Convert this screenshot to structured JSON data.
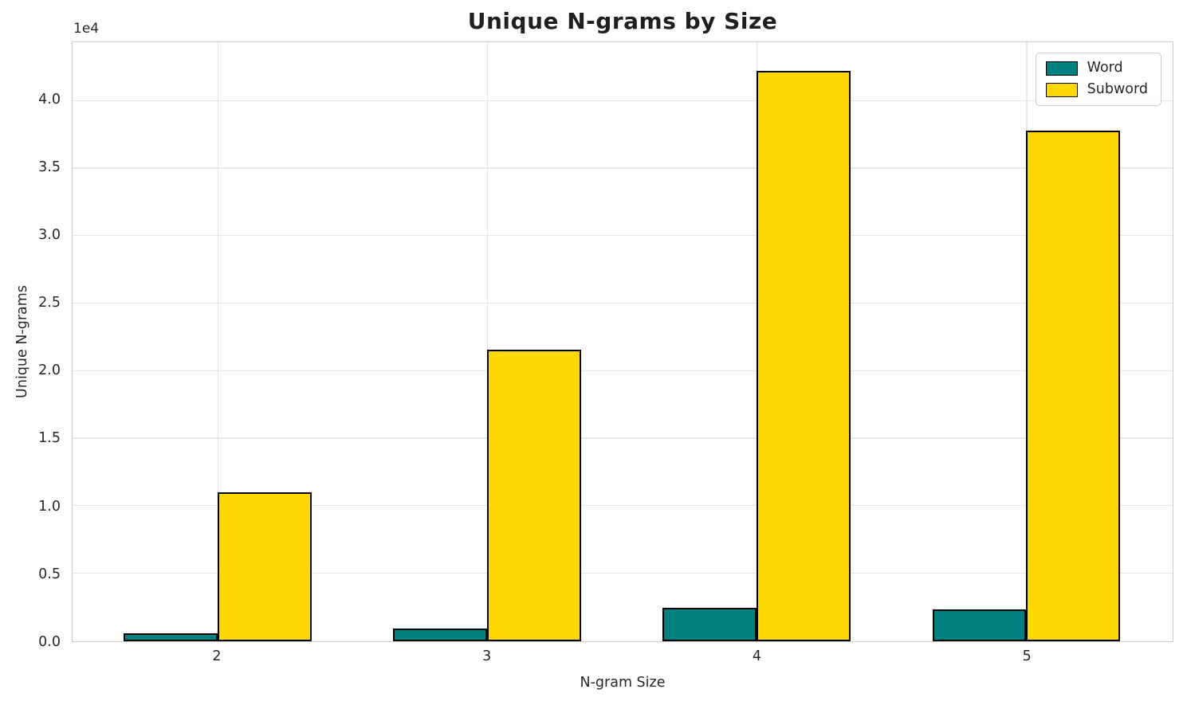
{
  "figure": {
    "title": "Unique N-grams by Size",
    "offset_text": "1e4"
  },
  "chart_data": {
    "type": "bar",
    "title": "Unique N-grams by Size",
    "xlabel": "N-gram Size",
    "ylabel": "Unique N-grams",
    "categories": [
      "2",
      "3",
      "4",
      "5"
    ],
    "series": [
      {
        "name": "Word",
        "color": "#008080",
        "values": [
          620,
          950,
          2500,
          2350
        ]
      },
      {
        "name": "Subword",
        "color": "#FFD700",
        "values": [
          11000,
          21600,
          42200,
          37800
        ]
      }
    ],
    "bar_edge_color": "#000000",
    "ylim": [
      0,
      44350
    ],
    "ytick_values": [
      0,
      5000,
      10000,
      15000,
      20000,
      25000,
      30000,
      35000,
      40000
    ],
    "ytick_labels": [
      "0.0",
      "0.5",
      "1.0",
      "1.5",
      "2.0",
      "2.5",
      "3.0",
      "3.5",
      "4.0"
    ],
    "y_offset_label": "1e4",
    "grid": true,
    "legend_position": "upper right"
  }
}
